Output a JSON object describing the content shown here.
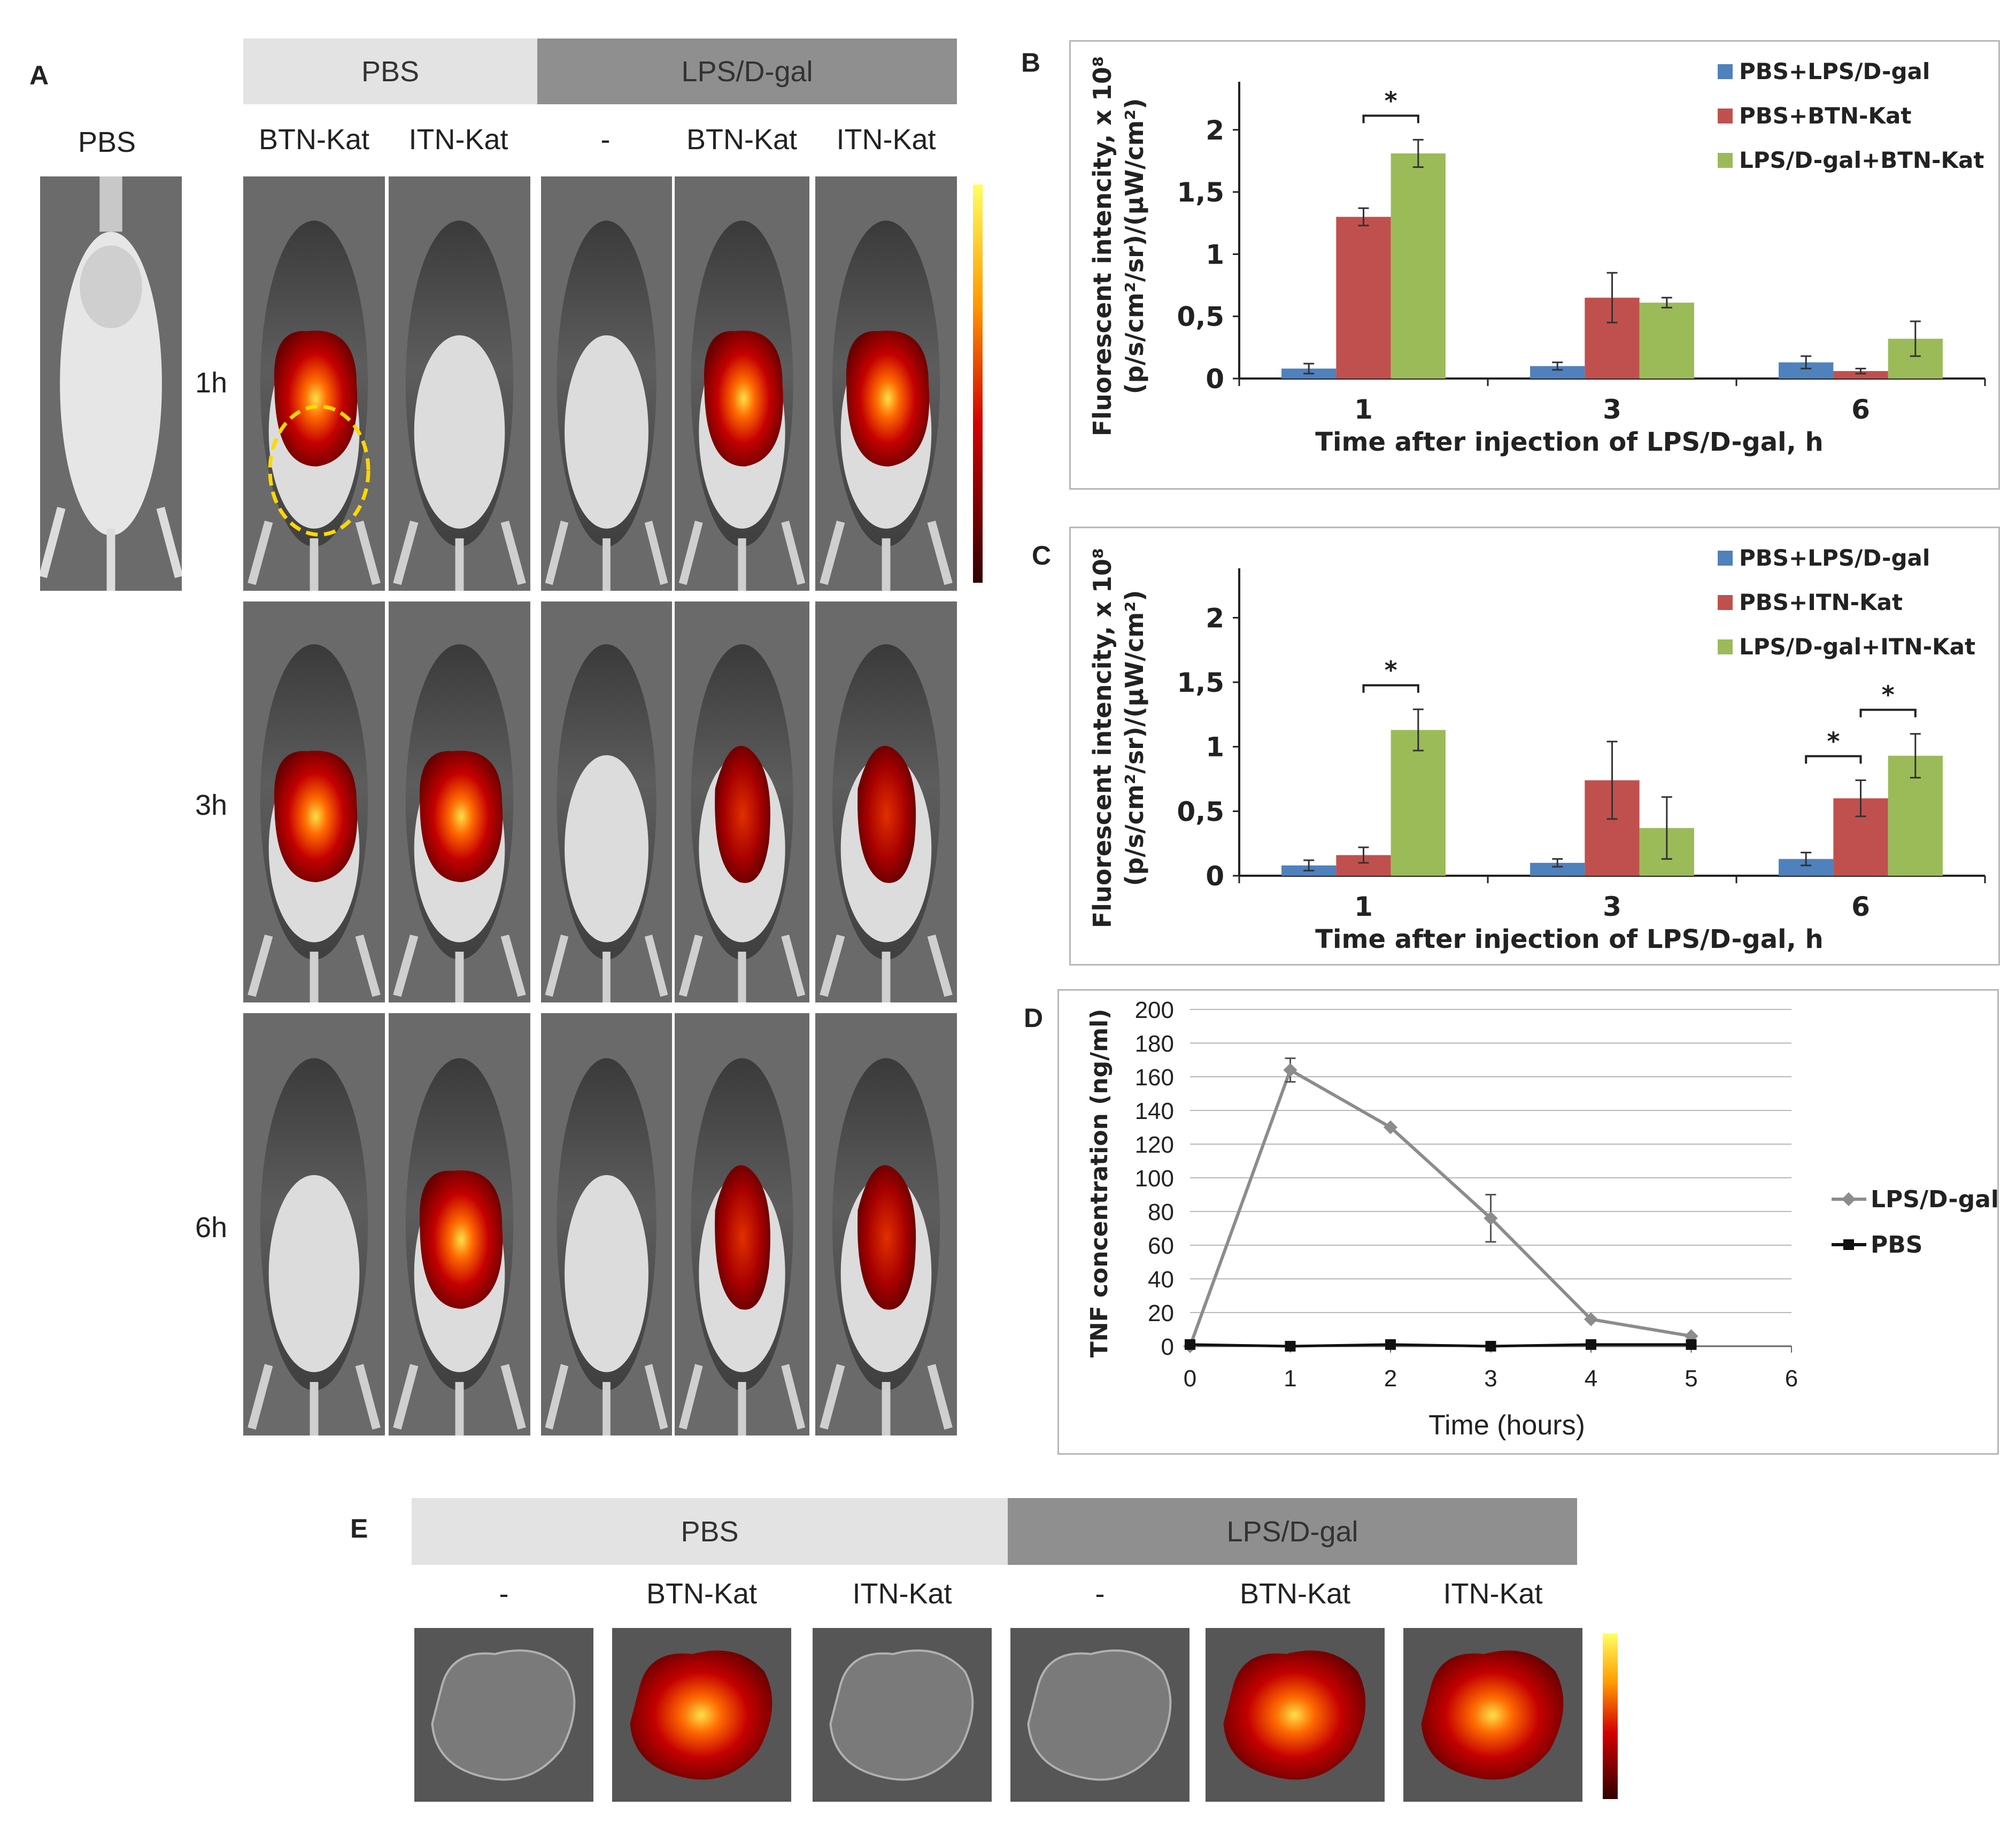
{
  "panel_a": {
    "letter": "A",
    "reference_label": "PBS",
    "group_headers": [
      {
        "label": "PBS",
        "color": "#e3e3e3"
      },
      {
        "label": "LPS/D-gal",
        "color": "#8f8f8f"
      }
    ],
    "column_labels": [
      "BTN-Kat",
      "ITN-Kat",
      "-",
      "BTN-Kat",
      "ITN-Kat"
    ],
    "row_labels": [
      "1h",
      "3h",
      "6h"
    ]
  },
  "panel_e": {
    "letter": "E",
    "group_headers": [
      {
        "label": "PBS",
        "color": "#e3e3e3"
      },
      {
        "label": "LPS/D-gal",
        "color": "#8f8f8f"
      }
    ],
    "column_labels": [
      "-",
      "BTN-Kat",
      "ITN-Kat",
      "-",
      "BTN-Kat",
      "ITN-Kat"
    ]
  },
  "colors": {
    "blue": "#4f81bd",
    "red": "#c0504d",
    "green": "#9bbb59",
    "line_gray": "#8c8c8c",
    "line_black": "#111111"
  },
  "chart_data": [
    {
      "id": "B",
      "letter": "B",
      "type": "bar",
      "ylabel_line1": "Fluorescent intencity, x 10⁸",
      "ylabel_line2": "(p/s/cm²/sr)/(μW/cm²)",
      "xlabel": "Time after injection of LPS/D-gal, h",
      "categories": [
        "1",
        "3",
        "6"
      ],
      "ylim": [
        0,
        2.3
      ],
      "yticks": [
        0,
        0.5,
        1,
        1.5,
        2
      ],
      "ytick_labels": [
        "0",
        "0,5",
        "1",
        "1,5",
        "2"
      ],
      "series": [
        {
          "name": "PBS+LPS/D-gal",
          "color": "#4f81bd",
          "values": [
            0.08,
            0.1,
            0.13
          ],
          "errors": [
            0.04,
            0.03,
            0.05
          ]
        },
        {
          "name": "PBS+BTN-Kat",
          "color": "#c0504d",
          "values": [
            1.3,
            0.65,
            0.06
          ],
          "errors": [
            0.07,
            0.2,
            0.02
          ]
        },
        {
          "name": "LPS/D-gal+BTN-Kat",
          "color": "#9bbb59",
          "values": [
            1.81,
            0.61,
            0.32
          ],
          "errors": [
            0.11,
            0.04,
            0.14
          ]
        }
      ],
      "significance": [
        {
          "category": 0,
          "from": 1,
          "to": 2,
          "label": "*"
        }
      ]
    },
    {
      "id": "C",
      "letter": "C",
      "type": "bar",
      "ylabel_line1": "Fluorescent intencity, x 10⁸",
      "ylabel_line2": "(p/s/cm²/sr)/(μW/cm²)",
      "xlabel": "Time after injection of LPS/D-gal, h",
      "categories": [
        "1",
        "3",
        "6"
      ],
      "ylim": [
        0,
        2.3
      ],
      "yticks": [
        0,
        0.5,
        1,
        1.5,
        2
      ],
      "ytick_labels": [
        "0",
        "0,5",
        "1",
        "1,5",
        "2"
      ],
      "series": [
        {
          "name": "PBS+LPS/D-gal",
          "color": "#4f81bd",
          "values": [
            0.08,
            0.1,
            0.13
          ],
          "errors": [
            0.04,
            0.03,
            0.05
          ]
        },
        {
          "name": "PBS+ITN-Kat",
          "color": "#c0504d",
          "values": [
            0.16,
            0.74,
            0.6
          ],
          "errors": [
            0.06,
            0.3,
            0.14
          ]
        },
        {
          "name": "LPS/D-gal+ITN-Kat",
          "color": "#9bbb59",
          "values": [
            1.13,
            0.37,
            0.93
          ],
          "errors": [
            0.16,
            0.24,
            0.17
          ]
        }
      ],
      "significance": [
        {
          "category": 0,
          "from": 1,
          "to": 2,
          "label": "*"
        },
        {
          "category": 2,
          "from": 0,
          "to": 1,
          "label": "*"
        },
        {
          "category": 2,
          "from": 1,
          "to": 2,
          "label": "*"
        }
      ]
    },
    {
      "id": "D",
      "letter": "D",
      "type": "line",
      "ylabel": "TNF concentration (ng/ml)",
      "xlabel": "Time (hours)",
      "xlim": [
        0,
        6
      ],
      "xticks": [
        0,
        1,
        2,
        3,
        4,
        5,
        6
      ],
      "ylim": [
        0,
        200
      ],
      "yticks": [
        0,
        20,
        40,
        60,
        80,
        100,
        120,
        140,
        160,
        180,
        200
      ],
      "grid": true,
      "series": [
        {
          "name": "LPS/D-gal",
          "color": "#8c8c8c",
          "marker": "diamond",
          "x": [
            0,
            1,
            2,
            3,
            4,
            5
          ],
          "y": [
            0,
            164,
            130,
            76,
            16,
            6
          ],
          "errors": [
            0,
            7,
            0,
            14,
            0,
            0
          ]
        },
        {
          "name": "PBS",
          "color": "#111111",
          "marker": "square",
          "x": [
            0,
            1,
            2,
            3,
            4,
            5
          ],
          "y": [
            1,
            0,
            1,
            0,
            1,
            1
          ],
          "errors": [
            0,
            0,
            0,
            0,
            0,
            0
          ]
        }
      ]
    }
  ]
}
